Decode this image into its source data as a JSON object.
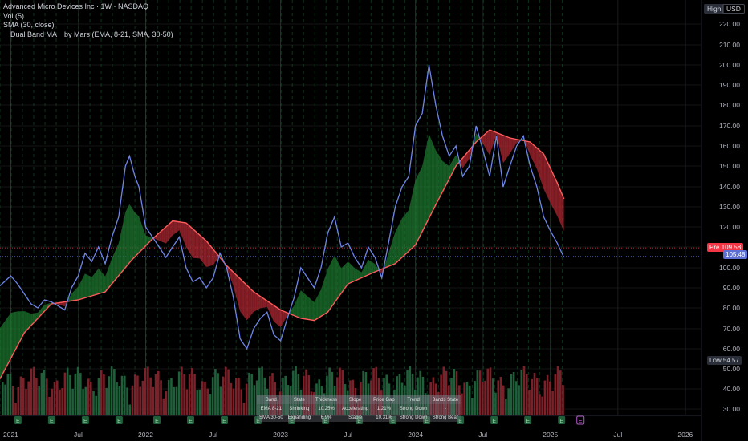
{
  "legend": {
    "title": "Advanced Micro Devices Inc · 1W · NASDAQ",
    "vol": "Vol (5)",
    "sma": "SMA (30, close)",
    "band": " Dual Band MA by Mars (EMA, 8-21, SMA, 30-50)"
  },
  "scale_buttons": {
    "high": "High",
    "currency": "USD"
  },
  "price_tags": {
    "pre_label": "Pre",
    "pre_value": "109.58",
    "close_value": "105.48",
    "low_label": "Low",
    "low_value": "54.57"
  },
  "strength_table": {
    "headers": [
      "Band",
      "State",
      "Thickness",
      "Slope",
      "Price Gap",
      "Trend",
      "Bands State"
    ],
    "rows": [
      [
        "EMA 8-21",
        "Shrinking",
        "10.25%",
        "Accelerating",
        "1.21%",
        "Strong Down",
        "-"
      ],
      [
        "SMA 30-50",
        "Expanding",
        "6.9%",
        "Stable",
        "10.31%",
        "Strong Down",
        "Strong Bear"
      ]
    ]
  },
  "chart_data": {
    "type": "line",
    "title": "Advanced Micro Devices Inc · 1W · NASDAQ",
    "xlabel": "",
    "ylabel": "",
    "ylim": [
      20,
      225
    ],
    "y_axis_ticks": [
      30,
      40,
      50,
      60,
      70,
      80,
      90,
      100,
      110,
      120,
      130,
      140,
      150,
      160,
      170,
      180,
      190,
      200,
      210,
      220
    ],
    "x_axis_ticks": [
      "2021",
      "Jul",
      "2022",
      "Jul",
      "2023",
      "Jul",
      "2024",
      "Jul",
      "2025",
      "Jul",
      "2026"
    ],
    "x_tick_times": [
      2021.0,
      2021.5,
      2022.0,
      2022.5,
      2023.0,
      2023.5,
      2024.0,
      2024.5,
      2025.0,
      2025.5,
      2026.0
    ],
    "xlim": [
      2020.92,
      2026.12
    ],
    "grid": true,
    "colors": {
      "price": "#6f86e8",
      "sma30": "#ff5c5c",
      "bull": "#1e7a30",
      "bear": "#b22833",
      "vol_up": "#1f5f3a",
      "vol_down": "#7a2129",
      "sma_vol": "#787b86"
    },
    "series": [
      {
        "type": "close",
        "x": [
          2020.92,
          2021.0,
          2021.05,
          2021.1,
          2021.15,
          2021.2,
          2021.25,
          2021.3,
          2021.35,
          2021.4,
          2021.45,
          2021.5,
          2021.55,
          2021.6,
          2021.65,
          2021.7,
          2021.75,
          2021.8,
          2021.85,
          2021.88,
          2021.92,
          2021.95,
          2022.0,
          2022.05,
          2022.1,
          2022.15,
          2022.2,
          2022.25,
          2022.3,
          2022.35,
          2022.4,
          2022.45,
          2022.5,
          2022.55,
          2022.6,
          2022.65,
          2022.7,
          2022.75,
          2022.8,
          2022.85,
          2022.9,
          2022.95,
          2023.0,
          2023.05,
          2023.1,
          2023.15,
          2023.2,
          2023.25,
          2023.3,
          2023.35,
          2023.4,
          2023.45,
          2023.5,
          2023.55,
          2023.6,
          2023.65,
          2023.7,
          2023.75,
          2023.8,
          2023.85,
          2023.9,
          2023.95,
          2024.0,
          2024.05,
          2024.1,
          2024.15,
          2024.2,
          2024.25,
          2024.3,
          2024.35,
          2024.4,
          2024.45,
          2024.5,
          2024.55,
          2024.6,
          2024.65,
          2024.7,
          2024.75,
          2024.8,
          2024.85,
          2024.9,
          2024.95,
          2025.0,
          2025.05,
          2025.1
        ],
        "y": [
          91,
          96,
          92,
          87,
          82,
          80,
          84,
          83,
          81,
          79,
          90,
          96,
          107,
          103,
          110,
          102,
          115,
          125,
          150,
          155,
          145,
          140,
          120,
          115,
          110,
          105,
          110,
          115,
          100,
          93,
          95,
          90,
          95,
          107,
          100,
          85,
          65,
          60,
          70,
          75,
          78,
          67,
          64,
          75,
          85,
          100,
          95,
          90,
          100,
          117,
          125,
          110,
          112,
          105,
          100,
          110,
          105,
          95,
          112,
          130,
          140,
          145,
          170,
          176,
          200,
          180,
          165,
          155,
          160,
          145,
          150,
          170,
          158,
          145,
          165,
          140,
          150,
          160,
          165,
          150,
          140,
          125,
          118,
          112,
          105
        ]
      },
      {
        "type": "sma30",
        "x": [
          2020.92,
          2021.1,
          2021.3,
          2021.5,
          2021.7,
          2021.9,
          2022.05,
          2022.2,
          2022.3,
          2022.45,
          2022.6,
          2022.8,
          2023.0,
          2023.15,
          2023.25,
          2023.35,
          2023.5,
          2023.7,
          2023.85,
          2024.0,
          2024.15,
          2024.3,
          2024.45,
          2024.55,
          2024.7,
          2024.85,
          2024.95,
          2025.05,
          2025.1
        ],
        "y": [
          45,
          68,
          82,
          84,
          88,
          104,
          114,
          123,
          122,
          113,
          101,
          88,
          79,
          75,
          74,
          78,
          92,
          98,
          102,
          111,
          131,
          150,
          162,
          168,
          164,
          162,
          156,
          142,
          134
        ]
      }
    ],
    "volume_panel": "bars at bottom, green = up week, red = down week"
  }
}
